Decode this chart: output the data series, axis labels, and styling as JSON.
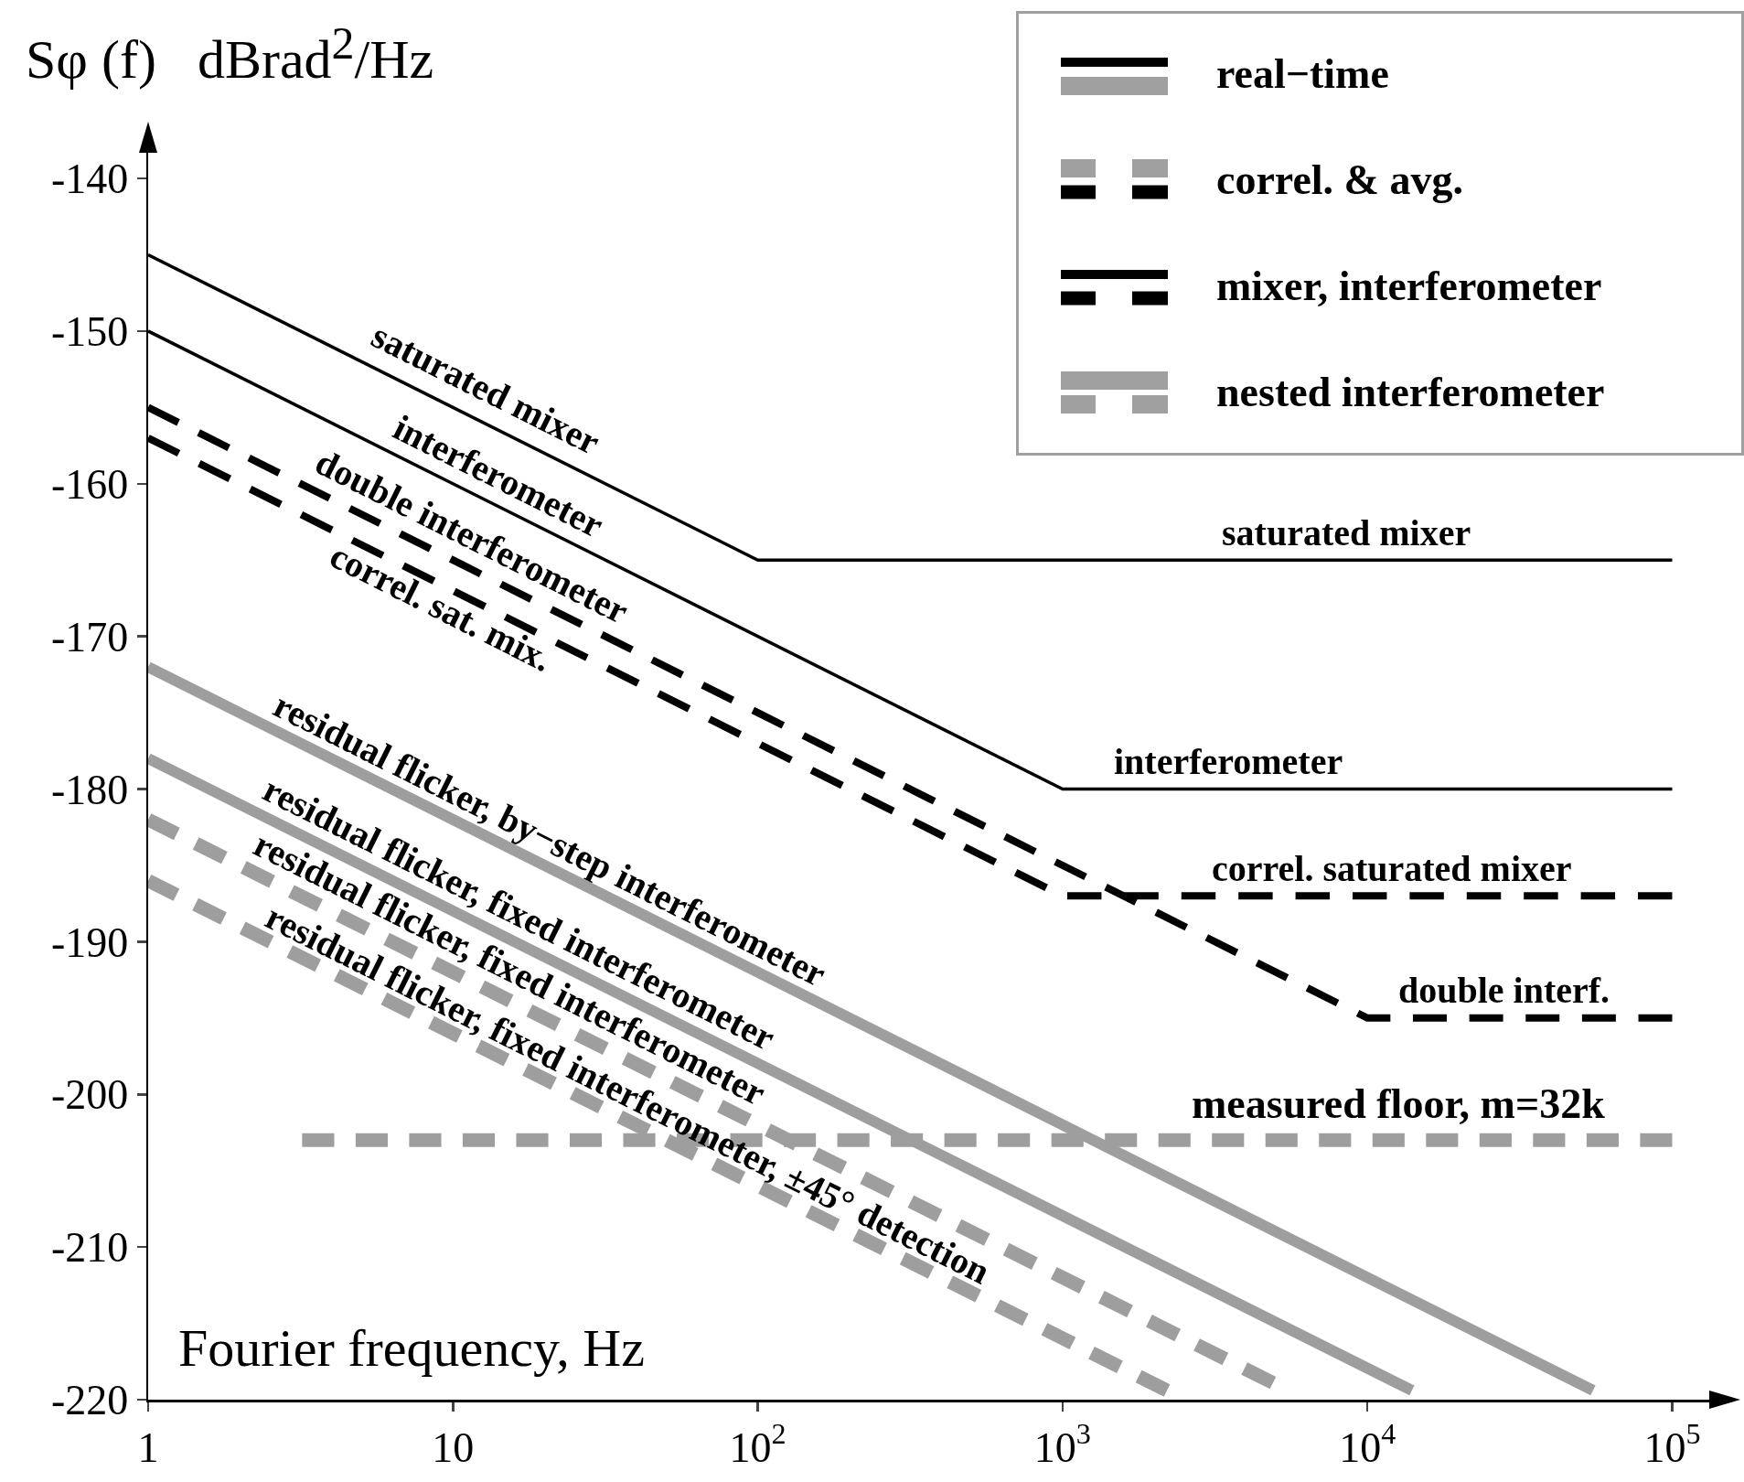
{
  "chart_data": {
    "type": "line",
    "ylabel": "Sφ (f)   dBrad$^{2}$/Hz",
    "xlabel": "Fourier frequency, Hz",
    "log": "x",
    "grid": false,
    "marker": "none",
    "xlim": [
      1,
      136000
    ],
    "xticks": [
      1,
      10,
      {
        "value": 100,
        "label": "10$^{2}$"
      },
      {
        "value": 1000,
        "label": "10$^{3}$"
      },
      {
        "value": 10000,
        "label": "10$^{4}$"
      },
      {
        "value": 100000,
        "label": "10$^{5}$"
      }
    ],
    "ylim": [
      -220,
      -137
    ],
    "yticks": [
      -220,
      -210,
      -200,
      -190,
      -180,
      -170,
      -160,
      -150,
      -140
    ],
    "series": [
      {
        "name": "saturated mixer",
        "color": "#000000",
        "line_style": "solid",
        "x": [
          1,
          100,
          100000
        ],
        "values": [
          -145,
          -165,
          -165
        ]
      },
      {
        "name": "interferometer",
        "color": "#000000",
        "line_style": "solid",
        "x": [
          1,
          1000,
          100000
        ],
        "values": [
          -150,
          -180,
          -180
        ]
      },
      {
        "name": "double interferometer",
        "color": "#000000",
        "line_style": "dashed",
        "x": [
          1,
          10000,
          100000
        ],
        "values": [
          -155,
          -195,
          -195
        ]
      },
      {
        "name": "correl. sat. mix.",
        "color": "#000000",
        "line_style": "dashed",
        "x": [
          1,
          1000,
          100000
        ],
        "values": [
          -157,
          -187,
          -187
        ]
      },
      {
        "name": "residual flicker, by−step interferometer",
        "color": "#9e9e9e",
        "line_style": "solid",
        "x": [
          1,
          55000
        ],
        "values": [
          -172,
          -219.4
        ]
      },
      {
        "name": "residual flicker, fixed interferometer",
        "color": "#9e9e9e",
        "line_style": "solid",
        "x": [
          1,
          14000
        ],
        "values": [
          -178,
          -219.4
        ]
      },
      {
        "name": "residual flicker, fixed interferometer",
        "color": "#9e9e9e",
        "line_style": "dashed",
        "x": [
          1,
          4900
        ],
        "values": [
          -182,
          -218.9
        ]
      },
      {
        "name": "residual flicker, fixed interferometer, ±45° detection",
        "color": "#9e9e9e",
        "line_style": "dashed",
        "x": [
          1,
          2200
        ],
        "values": [
          -186,
          -219.4
        ]
      },
      {
        "name": "measured floor, m=32k",
        "color": "#9e9e9e",
        "line_style": "dashed",
        "x": [
          3.2,
          100000
        ],
        "values": [
          -203,
          -203
        ]
      }
    ],
    "annotations": [
      "real−time",
      "correl. & avg.",
      "mixer, interferometer",
      "nested interferometer",
      {
        "text": "saturated mixer",
        "x": 8500,
        "y": -165
      },
      {
        "text": "interferometer",
        "x": 3500,
        "y": -180
      },
      {
        "text": "correl. saturated mixer",
        "x": 12000,
        "y": -187
      },
      {
        "text": "double interf.",
        "x": 28000,
        "y": -195
      }
    ]
  }
}
